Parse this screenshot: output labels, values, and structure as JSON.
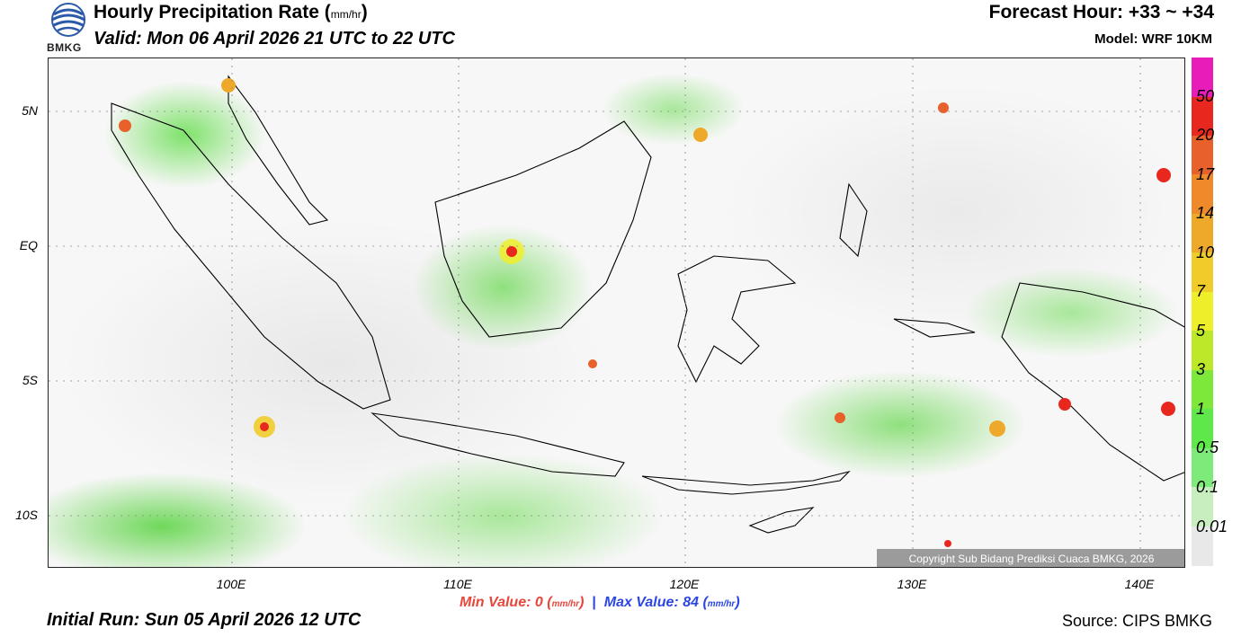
{
  "header": {
    "title": "Hourly Precipitation Rate (",
    "title_unit": "mm/hr",
    "title_close": ")",
    "valid": "Valid: Mon 06 April 2026 21 UTC to 22 UTC",
    "forecast_hour": "Forecast Hour: +33 ~ +34",
    "model": "Model: WRF 10KM",
    "logo_text": "BMKG"
  },
  "axes": {
    "y_ticks": [
      "5N",
      "EQ",
      "5S",
      "10S"
    ],
    "x_ticks": [
      "100E",
      "110E",
      "120E",
      "130E",
      "140E"
    ]
  },
  "colorbar": {
    "labels": [
      "50",
      "20",
      "17",
      "14",
      "10",
      "7",
      "5",
      "3",
      "1",
      "0.5",
      "0.1",
      "0.01"
    ],
    "colors": [
      "#e81cb8",
      "#e8281e",
      "#e8602a",
      "#ee8a2a",
      "#eea82a",
      "#f0cc2a",
      "#eeee2a",
      "#bde82a",
      "#7ee83a",
      "#5ee84a",
      "#7eea7a",
      "#c8eec0",
      "#e8e8e8"
    ]
  },
  "summary": {
    "min_label": "Min Value:",
    "min_value": "0",
    "max_label": "Max Value:",
    "max_value": "84",
    "unit": "mm/hr"
  },
  "footer": {
    "initial_run": "Initial Run: Sun 05 April 2026 12 UTC",
    "source": "Source: CIPS BMKG",
    "copyright": "Copyright Sub Bidang Prediksi Cuaca BMKG, 2026"
  }
}
